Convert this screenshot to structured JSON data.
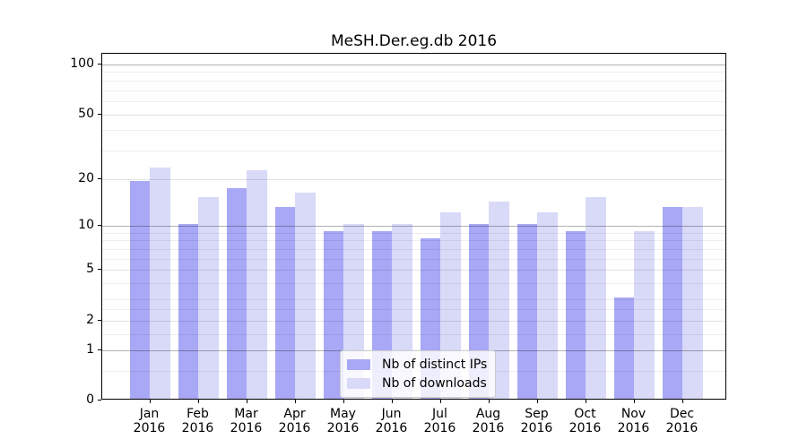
{
  "title": "MeSH.Der.eg.db 2016",
  "chart_data": {
    "type": "bar",
    "title": "MeSH.Der.eg.db 2016",
    "categories": [
      "Jan 2016",
      "Feb 2016",
      "Mar 2016",
      "Apr 2016",
      "May 2016",
      "Jun 2016",
      "Jul 2016",
      "Aug 2016",
      "Sep 2016",
      "Oct 2016",
      "Nov 2016",
      "Dec 2016"
    ],
    "x_tick_months": [
      "Jan",
      "Feb",
      "Mar",
      "Apr",
      "May",
      "Jun",
      "Jul",
      "Aug",
      "Sep",
      "Oct",
      "Nov",
      "Dec"
    ],
    "x_tick_year": "2016",
    "series": [
      {
        "name": "Nb of distinct IPs",
        "color": "#a8a8f6",
        "values": [
          19,
          10,
          17,
          13,
          9,
          9,
          8,
          10,
          10,
          9,
          3,
          13
        ]
      },
      {
        "name": "Nb of downloads",
        "color": "#d9d9f8",
        "values": [
          23,
          15,
          22,
          16,
          10,
          10,
          12,
          14,
          12,
          15,
          9,
          13
        ]
      }
    ],
    "xlabel": "",
    "ylabel": "",
    "ylim": [
      0,
      116
    ],
    "y_axis": {
      "scale": "log1p",
      "tick_labels": [
        100,
        50,
        20,
        10,
        5,
        2,
        1,
        0
      ],
      "decade_gridlines": [
        1,
        10,
        100
      ],
      "major_gridlines": [
        2,
        5,
        20,
        50
      ],
      "minor_gridlines": [
        0.5,
        1.5,
        2.5,
        3,
        4,
        6,
        7,
        8,
        9,
        30,
        40,
        60,
        70,
        80,
        90
      ]
    },
    "grid": true,
    "legend_position": "lower center, inside plot",
    "colors": {
      "bar_ips": "#a8a8f6",
      "bar_downloads": "#d9d9f8",
      "decade_grid": "rgba(0,0,0,0.30)",
      "major_grid": "rgba(0,0,0,0.115)",
      "minor_grid": "rgba(0,0,0,0.065)",
      "frame": "#000000",
      "legend_border": "#cccccc"
    }
  }
}
